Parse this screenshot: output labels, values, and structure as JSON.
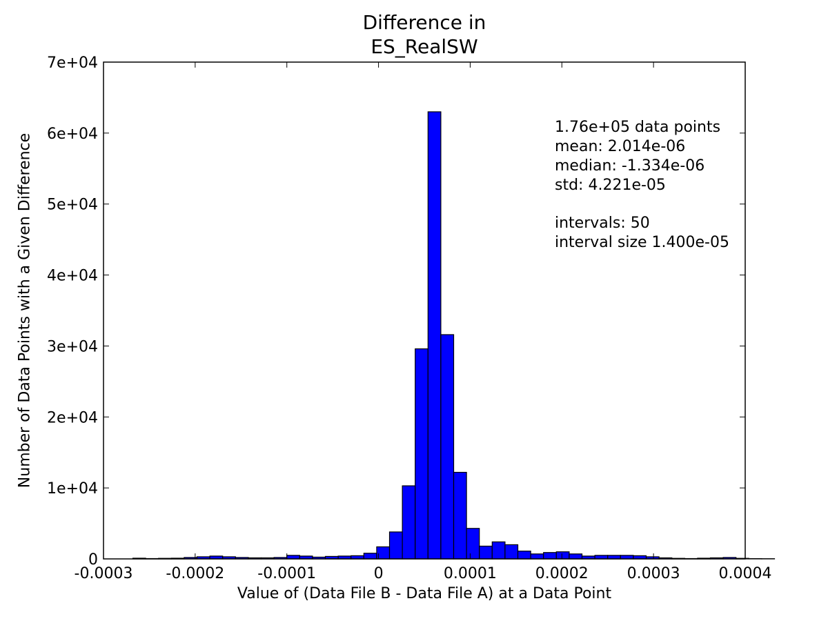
{
  "chart_data": {
    "type": "bar",
    "title": [
      "Difference in",
      "ES_RealSW"
    ],
    "xlabel": "Value of (Data File B - Data File A) at a Data Point",
    "ylabel": "Number of Data Points with a Given Difference",
    "xlim": [
      -0.0003,
      0.0004
    ],
    "ylim": [
      0,
      70000
    ],
    "xticks": [
      -0.0003,
      -0.0002,
      -0.0001,
      0,
      0.0001,
      0.0002,
      0.0003,
      0.0004
    ],
    "xtick_labels": [
      "-0.0003",
      "-0.0002",
      "-0.0001",
      "0",
      "0.0001",
      "0.0002",
      "0.0003",
      "0.0004"
    ],
    "yticks": [
      0,
      10000,
      20000,
      30000,
      40000,
      50000,
      60000,
      70000
    ],
    "ytick_labels": [
      "0",
      "1e+04",
      "2e+04",
      "3e+04",
      "4e+04",
      "5e+04",
      "6e+04",
      "7e+04"
    ],
    "bar_color": "#0000ff",
    "bin_start": -0.000268,
    "bin_width": 1.4e-05,
    "values": [
      100,
      50,
      80,
      100,
      200,
      300,
      400,
      300,
      200,
      150,
      150,
      200,
      500,
      400,
      250,
      350,
      400,
      450,
      800,
      1700,
      3800,
      10300,
      29600,
      63000,
      31600,
      12200,
      4300,
      1800,
      2400,
      2000,
      1100,
      700,
      900,
      1000,
      700,
      400,
      500,
      500,
      500,
      450,
      300,
      150,
      80,
      50,
      100,
      150,
      200,
      80,
      40,
      30
    ],
    "stats": {
      "points": "1.76e+05 data points",
      "mean": "mean: 2.014e-06",
      "median": "median: -1.334e-06",
      "std": "std: 4.221e-05",
      "intervals": "intervals: 50",
      "interval_size": "interval size 1.400e-05"
    }
  }
}
